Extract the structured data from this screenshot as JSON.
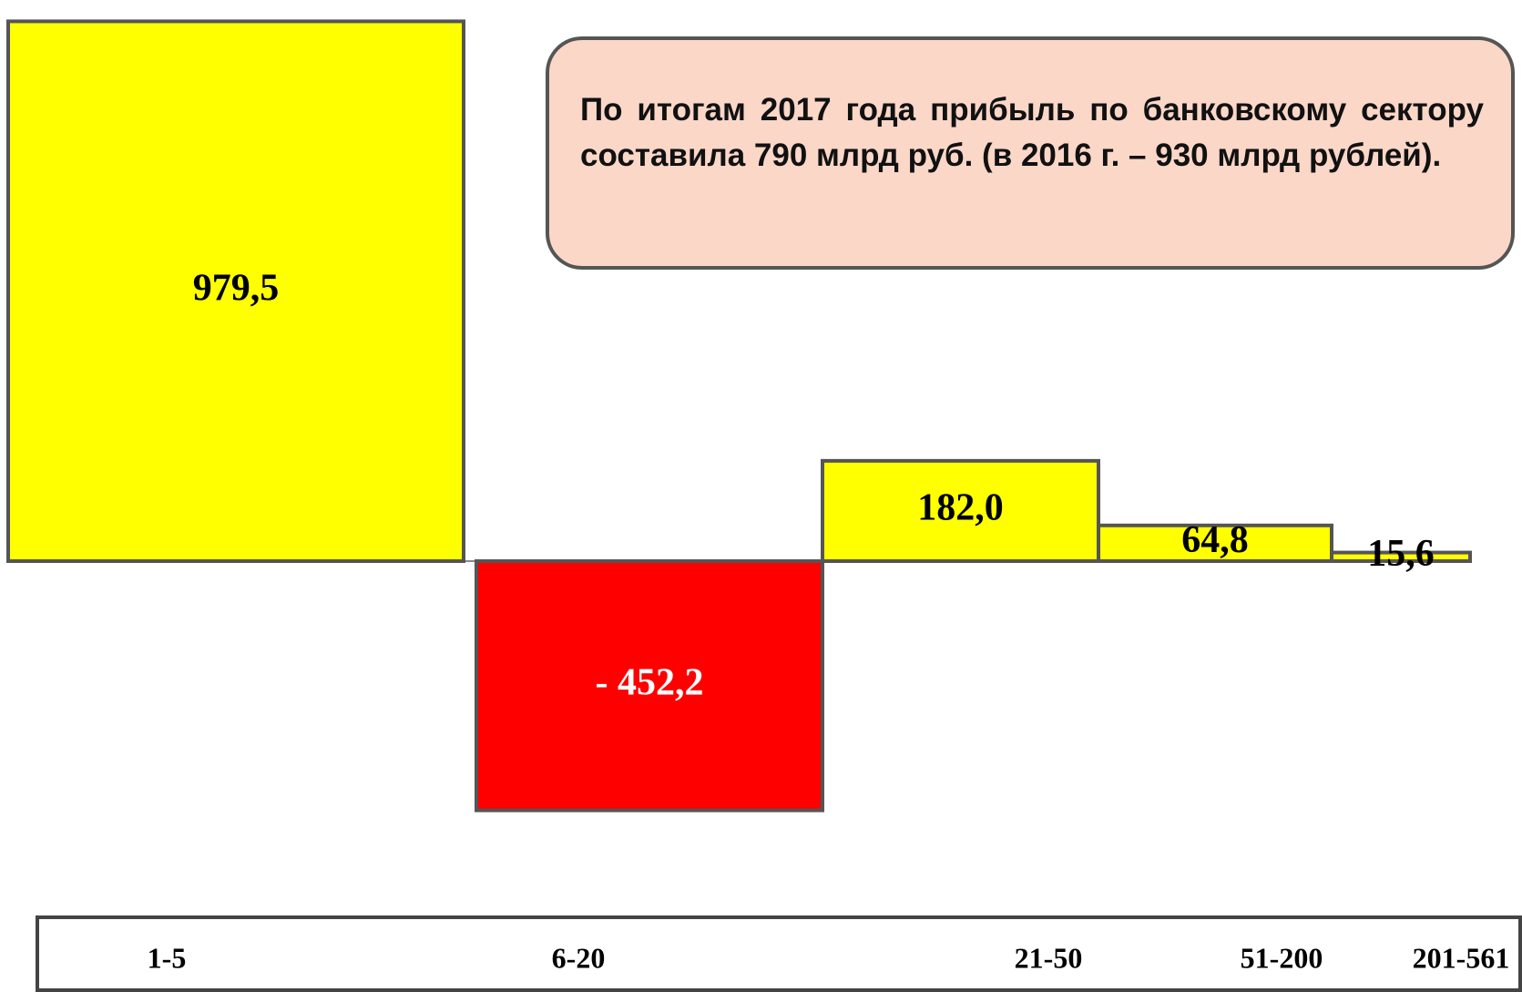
{
  "chart_data": {
    "type": "bar",
    "annotation": "По итогам 2017 года прибыль по банковскому сектору составила 790 млрд руб. (в 2016 г. – 930 млрд рублей).",
    "categories": [
      "1-5",
      "6-20",
      "21-50",
      "51-200",
      "201-561"
    ],
    "values": [
      979.5,
      -452.2,
      182.0,
      64.8,
      15.6
    ],
    "value_labels": [
      "979,5",
      "- 452,2",
      "182,0",
      "64,8",
      "15,6"
    ],
    "colors": [
      "#ffff00",
      "#ff0000",
      "#ffff00",
      "#ffff00",
      "#ffff00"
    ],
    "ylim": [
      -600,
      1000
    ]
  }
}
